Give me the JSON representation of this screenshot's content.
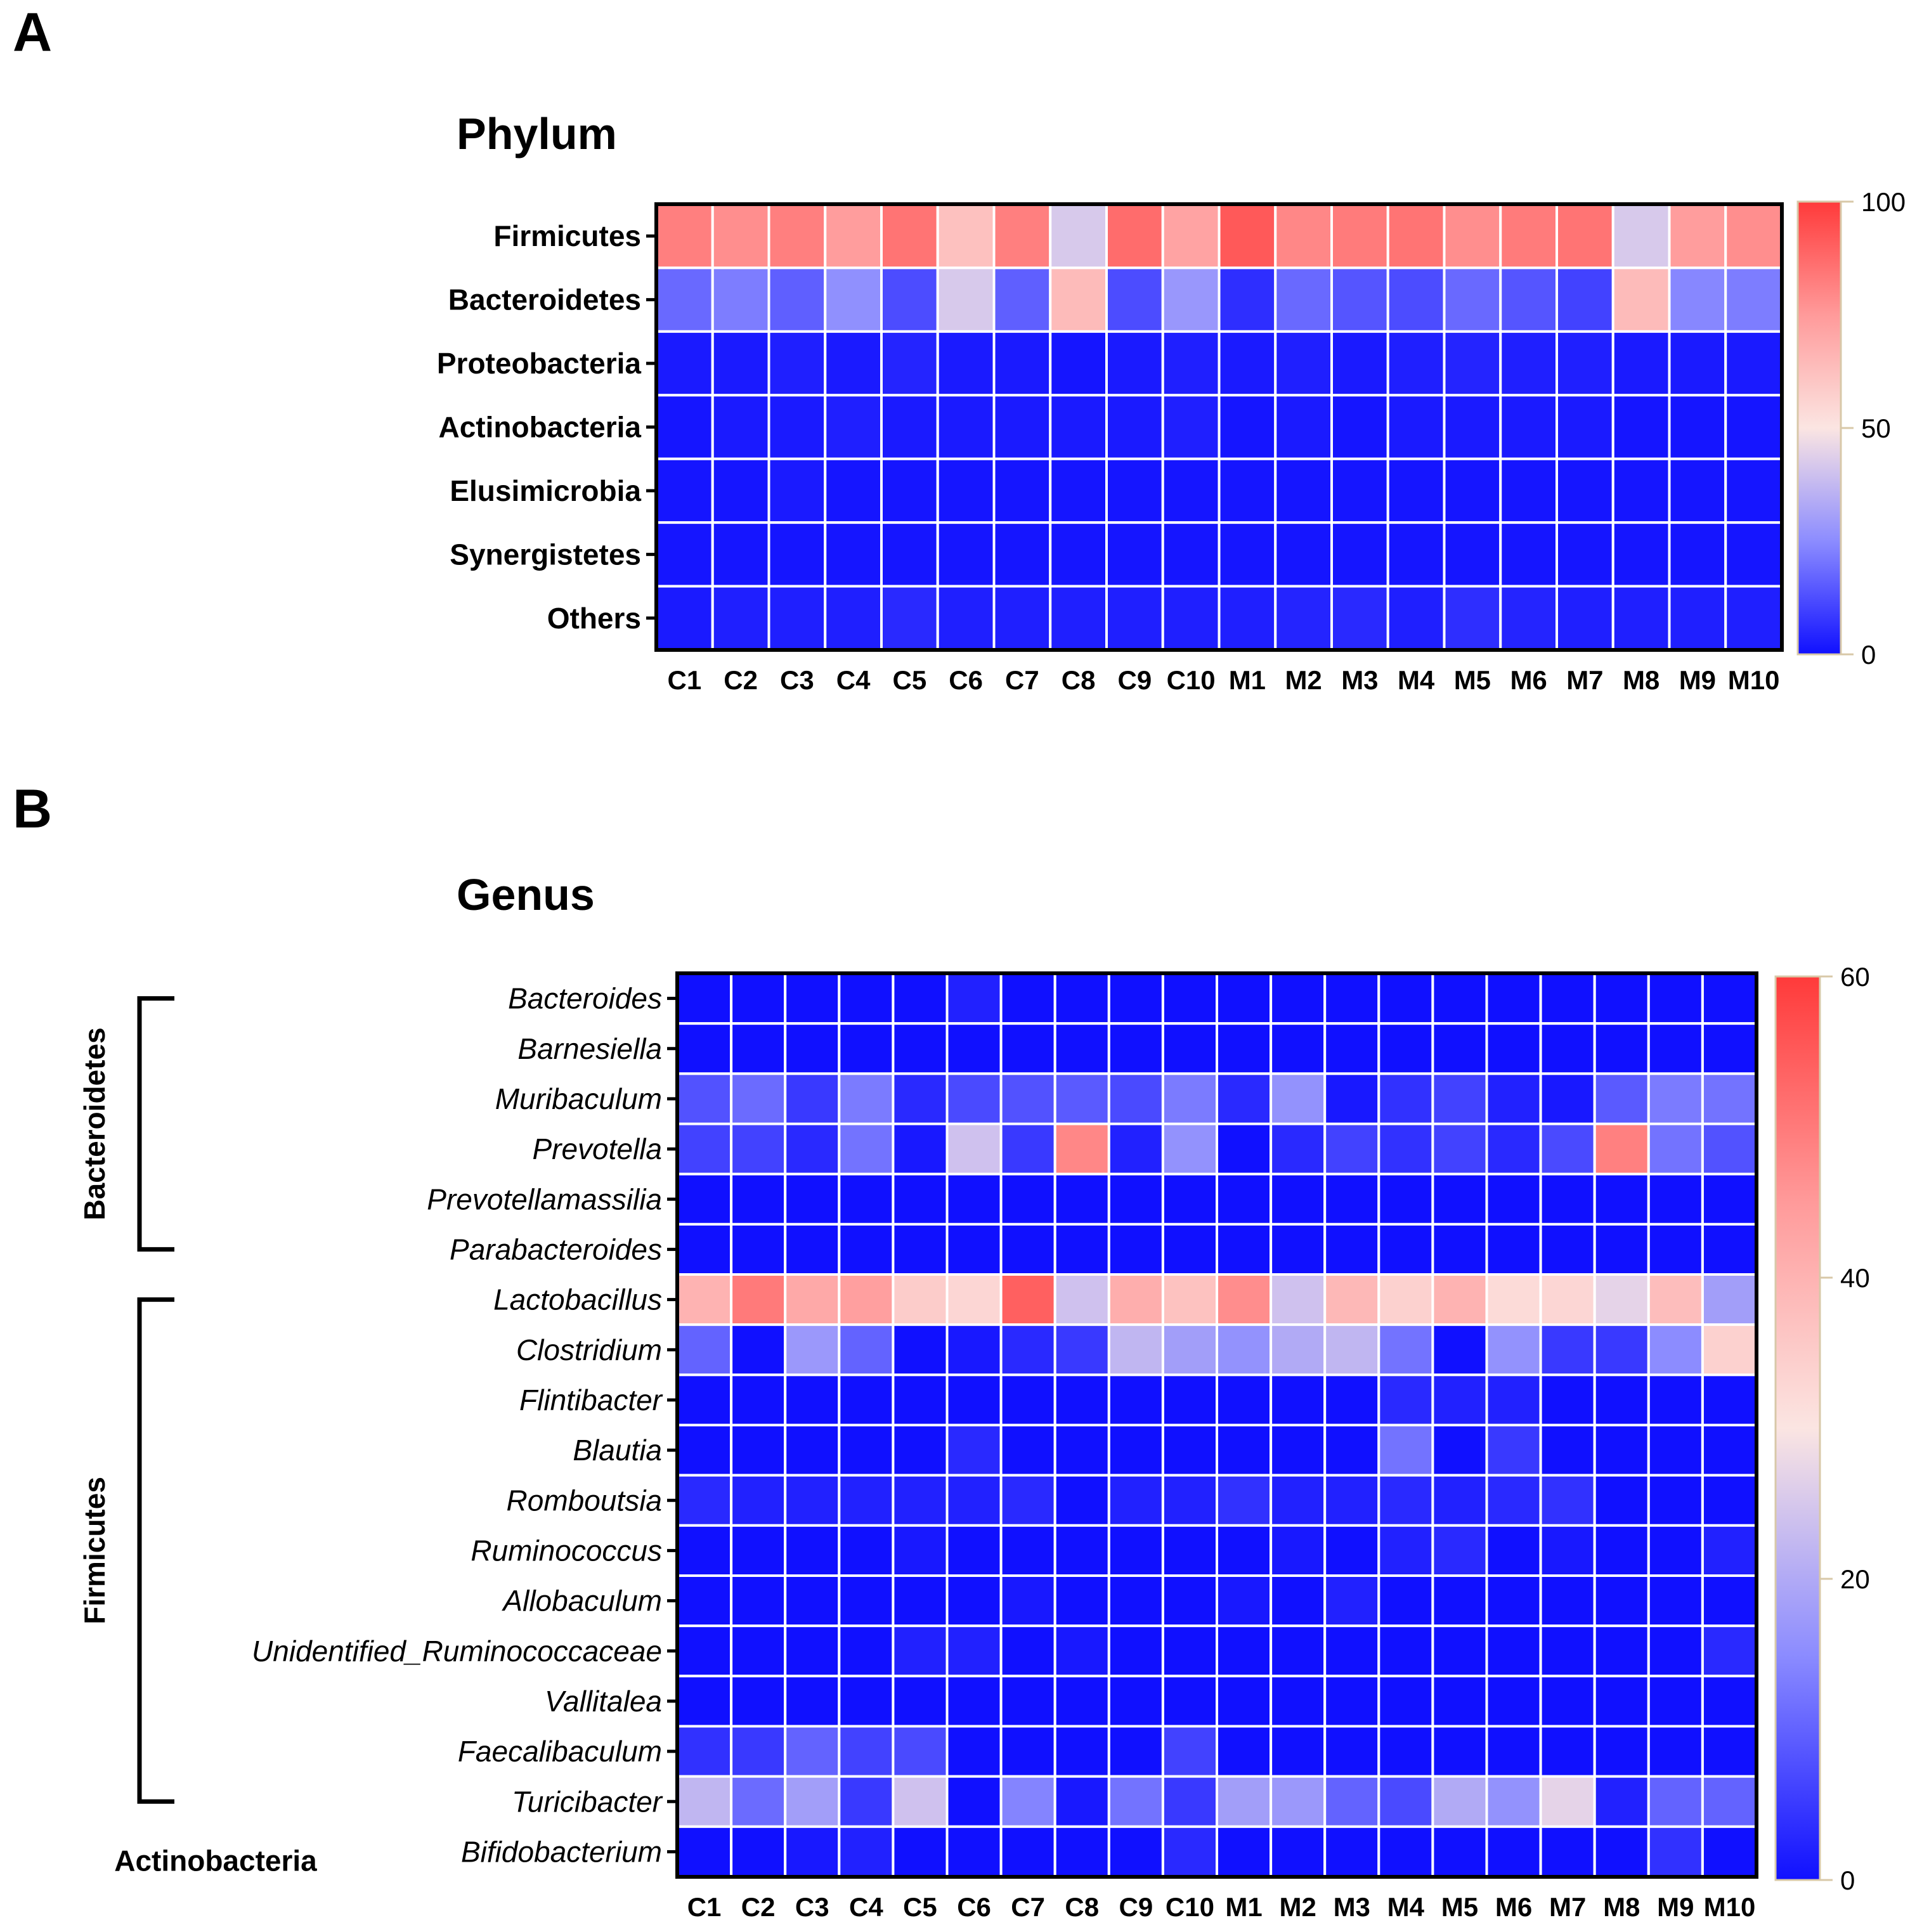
{
  "colors": {
    "low": "#1010ff",
    "mid": "#fbe5e2",
    "high": "#ff3a3a",
    "grid": "#ffffff",
    "frame": "#000000"
  },
  "chart_data": [
    {
      "type": "heatmap",
      "panel": "A",
      "title": "Phylum",
      "columns": [
        "C1",
        "C2",
        "C3",
        "C4",
        "C5",
        "C6",
        "C7",
        "C8",
        "C9",
        "C10",
        "M1",
        "M2",
        "M3",
        "M4",
        "M5",
        "M6",
        "M7",
        "M8",
        "M9",
        "M10"
      ],
      "rows": [
        "Firmicutes",
        "Bacteroidetes",
        "Proteobacteria",
        "Actinobacteria",
        "Elusimicrobia",
        "Synergistetes",
        "Others"
      ],
      "values": [
        [
          82,
          78,
          82,
          74,
          85,
          62,
          82,
          42,
          87,
          72,
          92,
          80,
          83,
          85,
          78,
          83,
          85,
          42,
          74,
          78
        ],
        [
          18,
          22,
          16,
          26,
          12,
          42,
          16,
          64,
          12,
          28,
          6,
          18,
          14,
          12,
          18,
          14,
          10,
          64,
          24,
          22
        ],
        [
          2,
          2,
          3,
          2,
          4,
          2,
          2,
          1,
          2,
          3,
          2,
          3,
          2,
          3,
          4,
          3,
          3,
          2,
          2,
          2
        ],
        [
          1,
          2,
          2,
          3,
          2,
          2,
          2,
          2,
          2,
          3,
          1,
          2,
          1,
          2,
          2,
          2,
          2,
          1,
          1,
          1
        ],
        [
          1,
          1,
          2,
          1,
          1,
          1,
          1,
          1,
          1,
          1,
          1,
          1,
          1,
          1,
          1,
          1,
          1,
          1,
          1,
          1
        ],
        [
          1,
          1,
          1,
          1,
          1,
          1,
          1,
          1,
          1,
          1,
          1,
          1,
          1,
          1,
          1,
          1,
          1,
          1,
          1,
          1
        ],
        [
          2,
          3,
          3,
          3,
          5,
          3,
          3,
          3,
          3,
          3,
          3,
          4,
          5,
          3,
          6,
          4,
          3,
          3,
          3,
          3
        ]
      ],
      "colorbar": {
        "min": 0,
        "max": 100,
        "ticks": [
          0,
          50,
          100
        ]
      }
    },
    {
      "type": "heatmap",
      "panel": "B",
      "title": "Genus",
      "columns": [
        "C1",
        "C2",
        "C3",
        "C4",
        "C5",
        "C6",
        "C7",
        "C8",
        "C9",
        "C10",
        "M1",
        "M2",
        "M3",
        "M4",
        "M5",
        "M6",
        "M7",
        "M8",
        "M9",
        "M10"
      ],
      "rows": [
        "Bacteroides",
        "Barnesiella",
        "Muribaculum",
        "Prevotella",
        "Prevotellamassilia",
        "Parabacteroides",
        "Lactobacillus",
        "Clostridium",
        "Flintibacter",
        "Blautia",
        "Romboutsia",
        "Ruminococcus",
        "Allobaculum",
        "Unidentified_Ruminococcaceae",
        "Vallitalea",
        "Faecalibaculum",
        "Turicibacter",
        "Bifidobacterium"
      ],
      "values": [
        [
          0,
          0,
          0,
          0,
          0,
          2,
          0,
          0,
          0,
          0,
          0,
          0,
          0,
          0,
          0,
          0,
          0,
          0,
          0,
          0
        ],
        [
          0,
          0,
          0,
          0,
          0,
          0,
          0,
          0,
          0,
          0,
          0,
          0,
          0,
          0,
          0,
          0,
          0,
          0,
          0,
          0
        ],
        [
          8,
          11,
          5,
          13,
          3,
          7,
          8,
          9,
          7,
          13,
          3,
          16,
          1,
          4,
          6,
          2,
          1,
          9,
          13,
          12
        ],
        [
          6,
          6,
          3,
          12,
          1,
          24,
          5,
          48,
          2,
          16,
          0,
          3,
          6,
          4,
          6,
          3,
          7,
          49,
          12,
          8
        ],
        [
          0,
          0,
          0,
          0,
          0,
          0,
          0,
          0,
          0,
          0,
          0,
          0,
          0,
          0,
          0,
          0,
          0,
          0,
          0,
          0
        ],
        [
          0,
          0,
          0,
          0,
          0,
          0,
          0,
          0,
          0,
          0,
          0,
          0,
          0,
          0,
          0,
          0,
          0,
          0,
          0,
          0
        ],
        [
          40,
          50,
          42,
          44,
          35,
          33,
          54,
          24,
          41,
          37,
          47,
          24,
          39,
          34,
          40,
          32,
          33,
          27,
          38,
          18
        ],
        [
          10,
          0,
          17,
          10,
          0,
          1,
          3,
          5,
          22,
          18,
          16,
          20,
          22,
          12,
          0,
          16,
          5,
          5,
          15,
          34
        ],
        [
          0,
          0,
          0,
          0,
          0,
          0,
          0,
          0,
          0,
          0,
          0,
          0,
          0,
          3,
          2,
          2,
          0,
          0,
          0,
          0
        ],
        [
          0,
          0,
          0,
          0,
          0,
          3,
          0,
          0,
          0,
          0,
          0,
          0,
          0,
          12,
          0,
          5,
          0,
          0,
          0,
          0
        ],
        [
          3,
          2,
          2,
          2,
          2,
          2,
          3,
          0,
          2,
          2,
          4,
          2,
          2,
          3,
          2,
          3,
          4,
          0,
          0,
          0
        ],
        [
          0,
          0,
          0,
          0,
          1,
          0,
          0,
          0,
          0,
          0,
          0,
          1,
          0,
          2,
          3,
          0,
          1,
          0,
          0,
          2
        ],
        [
          0,
          0,
          0,
          0,
          0,
          0,
          1,
          0,
          0,
          0,
          1,
          0,
          2,
          0,
          0,
          0,
          0,
          0,
          0,
          0
        ],
        [
          0,
          0,
          0,
          0,
          2,
          2,
          0,
          1,
          0,
          0,
          0,
          0,
          0,
          0,
          0,
          0,
          0,
          0,
          0,
          3
        ],
        [
          0,
          0,
          0,
          0,
          0,
          0,
          0,
          0,
          0,
          0,
          0,
          0,
          0,
          0,
          0,
          0,
          0,
          0,
          0,
          0
        ],
        [
          4,
          5,
          10,
          6,
          7,
          0,
          0,
          0,
          0,
          6,
          0,
          0,
          0,
          0,
          0,
          0,
          0,
          0,
          0,
          0
        ],
        [
          22,
          11,
          18,
          5,
          24,
          0,
          14,
          1,
          12,
          5,
          18,
          17,
          10,
          7,
          20,
          16,
          27,
          2,
          10,
          10
        ],
        [
          0,
          0,
          1,
          2,
          0,
          0,
          0,
          0,
          0,
          3,
          0,
          0,
          0,
          0,
          0,
          0,
          0,
          0,
          4,
          0
        ]
      ],
      "groups": [
        {
          "label": "Bacteroidetes",
          "from": 0,
          "to": 5
        },
        {
          "label": "Firmicutes",
          "from": 6,
          "to": 16
        },
        {
          "label": "Actinobacteria",
          "from": 17,
          "to": 17
        }
      ],
      "colorbar": {
        "min": 0,
        "max": 60,
        "ticks": [
          0,
          20,
          40,
          60
        ]
      }
    }
  ]
}
